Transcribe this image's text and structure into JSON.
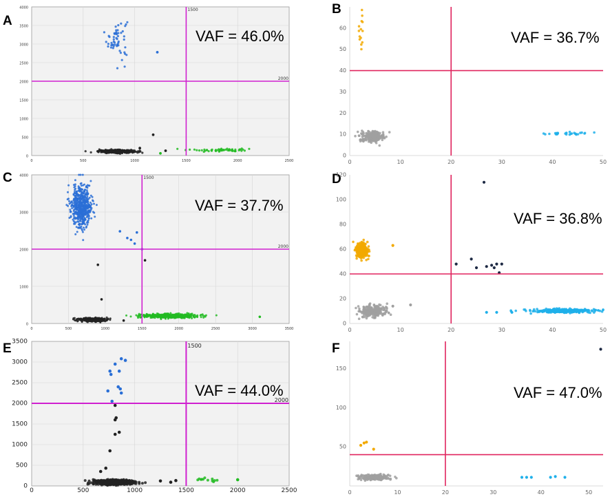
{
  "figure": {
    "panel_labels": [
      "A",
      "B",
      "C",
      "D",
      "E",
      "F"
    ]
  },
  "chart_data": [
    {
      "panel": "A",
      "type": "scatter",
      "annotation": "VAF = 46.0%",
      "xlim": [
        0,
        2500
      ],
      "ylim": [
        0,
        4000
      ],
      "x_ticks": [
        0,
        500,
        1000,
        1500,
        2000,
        2500
      ],
      "y_ticks": [
        0,
        500,
        1000,
        1500,
        2000,
        2500,
        3000,
        3500,
        4000
      ],
      "x_threshold": 1500,
      "y_threshold": 2000,
      "x_threshold_label": "1500",
      "y_threshold_label": "2000",
      "grid": true,
      "clusters": [
        {
          "color": "#2a6fd6",
          "x_mean": 830,
          "y_mean": 3150,
          "x_sd": 50,
          "y_sd": 280,
          "count": 55
        },
        {
          "color": "#222222",
          "x_mean": 820,
          "y_mean": 110,
          "x_sd": 85,
          "y_sd": 20,
          "count": 420
        },
        {
          "color": "#22bb22",
          "x_mean": 1850,
          "y_mean": 150,
          "x_sd": 150,
          "y_sd": 22,
          "count": 55
        }
      ],
      "outliers": [
        {
          "x": 1220,
          "y": 2780,
          "color": "#2a6fd6"
        },
        {
          "x": 1180,
          "y": 560,
          "color": "#222222"
        },
        {
          "x": 1050,
          "y": 200,
          "color": "#222222"
        },
        {
          "x": 1300,
          "y": 130,
          "color": "#222222"
        },
        {
          "x": 1250,
          "y": 60,
          "color": "#22bb22"
        }
      ]
    },
    {
      "panel": "B",
      "type": "scatter",
      "annotation": "VAF = 36.7%",
      "xlim": [
        0,
        50
      ],
      "ylim": [
        0,
        70
      ],
      "x_ticks": [
        0,
        10,
        20,
        30,
        40,
        50
      ],
      "y_ticks": [
        0,
        10,
        20,
        30,
        40,
        50,
        60
      ],
      "x_threshold": 20,
      "y_threshold": 40,
      "grid": false,
      "clusters": [
        {
          "color": "#f2a900",
          "x_mean": 2.2,
          "y_mean": 58,
          "x_sd": 0.35,
          "y_sd": 4.5,
          "count": 14
        },
        {
          "color": "#a0a0a0",
          "x_mean": 4.5,
          "y_mean": 9,
          "x_sd": 1.1,
          "y_sd": 1.2,
          "count": 260
        },
        {
          "color": "#1fb0ea",
          "x_mean": 43,
          "y_mean": 10.3,
          "x_sd": 2.4,
          "y_sd": 0.35,
          "count": 30
        }
      ],
      "outliers": []
    },
    {
      "panel": "C",
      "type": "scatter",
      "annotation": "VAF = 37.7%",
      "xlim": [
        0,
        3500
      ],
      "ylim": [
        0,
        4000
      ],
      "x_ticks": [
        0,
        500,
        1000,
        1500,
        2000,
        2500,
        3000,
        3500
      ],
      "y_ticks": [
        0,
        1000,
        2000,
        3000,
        4000
      ],
      "x_threshold": 1500,
      "y_threshold": 2000,
      "x_threshold_label": "1500",
      "y_threshold_label": "2000",
      "grid": true,
      "clusters": [
        {
          "color": "#2a6fd6",
          "x_mean": 680,
          "y_mean": 3150,
          "x_sd": 70,
          "y_sd": 280,
          "count": 520
        },
        {
          "color": "#222222",
          "x_mean": 820,
          "y_mean": 100,
          "x_sd": 90,
          "y_sd": 22,
          "count": 480
        },
        {
          "color": "#22bb22",
          "x_mean": 1880,
          "y_mean": 200,
          "x_sd": 190,
          "y_sd": 28,
          "count": 520
        }
      ],
      "outliers": [
        {
          "x": 1300,
          "y": 2300,
          "color": "#2a6fd6"
        },
        {
          "x": 1400,
          "y": 2150,
          "color": "#2a6fd6"
        },
        {
          "x": 1430,
          "y": 2450,
          "color": "#2a6fd6"
        },
        {
          "x": 1500,
          "y": 2000,
          "color": "#2a6fd6"
        },
        {
          "x": 1350,
          "y": 2250,
          "color": "#2a6fd6"
        },
        {
          "x": 1200,
          "y": 2480,
          "color": "#2a6fd6"
        },
        {
          "x": 1540,
          "y": 1700,
          "color": "#222222"
        },
        {
          "x": 900,
          "y": 1580,
          "color": "#222222"
        },
        {
          "x": 950,
          "y": 650,
          "color": "#222222"
        },
        {
          "x": 1250,
          "y": 80,
          "color": "#222222"
        },
        {
          "x": 3100,
          "y": 180,
          "color": "#22bb22"
        }
      ]
    },
    {
      "panel": "D",
      "type": "scatter",
      "annotation": "VAF = 36.8%",
      "xlim": [
        0,
        50
      ],
      "ylim": [
        0,
        120
      ],
      "x_ticks": [
        0,
        10,
        20,
        30,
        40,
        50
      ],
      "y_ticks": [
        0,
        20,
        40,
        60,
        80,
        100,
        120
      ],
      "x_threshold": 20,
      "y_threshold": 40,
      "grid": false,
      "clusters": [
        {
          "color": "#f2a900",
          "x_mean": 2.4,
          "y_mean": 59,
          "x_sd": 0.6,
          "y_sd": 3.2,
          "count": 280
        },
        {
          "color": "#a0a0a0",
          "x_mean": 4.5,
          "y_mean": 10,
          "x_sd": 1.4,
          "y_sd": 2.6,
          "count": 230
        },
        {
          "color": "#1fb0ea",
          "x_mean": 42,
          "y_mean": 10.2,
          "x_sd": 3.2,
          "y_sd": 0.7,
          "count": 320
        }
      ],
      "outliers": [
        {
          "x": 26.5,
          "y": 114,
          "color": "#1e2a44"
        },
        {
          "x": 21,
          "y": 48,
          "color": "#1e2a44"
        },
        {
          "x": 24,
          "y": 52,
          "color": "#1e2a44"
        },
        {
          "x": 25,
          "y": 45,
          "color": "#1e2a44"
        },
        {
          "x": 27,
          "y": 46,
          "color": "#1e2a44"
        },
        {
          "x": 28,
          "y": 47,
          "color": "#1e2a44"
        },
        {
          "x": 28.5,
          "y": 45,
          "color": "#1e2a44"
        },
        {
          "x": 29,
          "y": 48,
          "color": "#1e2a44"
        },
        {
          "x": 30,
          "y": 48,
          "color": "#1e2a44"
        },
        {
          "x": 29.5,
          "y": 41,
          "color": "#1e2a44"
        },
        {
          "x": 8.5,
          "y": 63,
          "color": "#f2a900"
        },
        {
          "x": 12,
          "y": 15,
          "color": "#a0a0a0"
        },
        {
          "x": 8.5,
          "y": 14,
          "color": "#a0a0a0"
        },
        {
          "x": 27,
          "y": 9,
          "color": "#1fb0ea"
        },
        {
          "x": 29,
          "y": 9,
          "color": "#1fb0ea"
        },
        {
          "x": 32,
          "y": 9,
          "color": "#1fb0ea"
        }
      ]
    },
    {
      "panel": "E",
      "type": "scatter",
      "annotation": "VAF = 44.0%",
      "xlim": [
        0,
        2500
      ],
      "ylim": [
        0,
        3500
      ],
      "x_ticks": [
        0,
        500,
        1000,
        1500,
        2000,
        2500
      ],
      "y_ticks": [
        0,
        500,
        1000,
        1500,
        2000,
        2500,
        3000,
        3500
      ],
      "x_threshold": 1500,
      "y_threshold": 2000,
      "x_threshold_label": "1500",
      "y_threshold_label": "2000",
      "grid": true,
      "clusters": [
        {
          "color": "#222222",
          "x_mean": 800,
          "y_mean": 90,
          "x_sd": 90,
          "y_sd": 28,
          "count": 520
        },
        {
          "color": "#22bb22",
          "x_mean": 1720,
          "y_mean": 150,
          "x_sd": 90,
          "y_sd": 25,
          "count": 12
        }
      ],
      "outliers": [
        {
          "x": 760,
          "y": 2780,
          "color": "#2a6fd6"
        },
        {
          "x": 770,
          "y": 2700,
          "color": "#2a6fd6"
        },
        {
          "x": 810,
          "y": 2950,
          "color": "#2a6fd6"
        },
        {
          "x": 870,
          "y": 3080,
          "color": "#2a6fd6"
        },
        {
          "x": 910,
          "y": 3040,
          "color": "#2a6fd6"
        },
        {
          "x": 850,
          "y": 2780,
          "color": "#2a6fd6"
        },
        {
          "x": 860,
          "y": 2350,
          "color": "#2a6fd6"
        },
        {
          "x": 870,
          "y": 2250,
          "color": "#2a6fd6"
        },
        {
          "x": 840,
          "y": 2400,
          "color": "#2a6fd6"
        },
        {
          "x": 740,
          "y": 2300,
          "color": "#2a6fd6"
        },
        {
          "x": 780,
          "y": 2050,
          "color": "#2a6fd6"
        },
        {
          "x": 810,
          "y": 1950,
          "color": "#222222"
        },
        {
          "x": 820,
          "y": 1650,
          "color": "#222222"
        },
        {
          "x": 810,
          "y": 1600,
          "color": "#222222"
        },
        {
          "x": 810,
          "y": 1250,
          "color": "#222222"
        },
        {
          "x": 850,
          "y": 1300,
          "color": "#222222"
        },
        {
          "x": 760,
          "y": 850,
          "color": "#222222"
        },
        {
          "x": 670,
          "y": 350,
          "color": "#222222"
        },
        {
          "x": 720,
          "y": 430,
          "color": "#222222"
        },
        {
          "x": 1400,
          "y": 130,
          "color": "#222222"
        },
        {
          "x": 1350,
          "y": 90,
          "color": "#222222"
        },
        {
          "x": 1250,
          "y": 120,
          "color": "#222222"
        },
        {
          "x": 2000,
          "y": 150,
          "color": "#22bb22"
        }
      ]
    },
    {
      "panel": "F",
      "type": "scatter",
      "annotation": "VAF = 47.0%",
      "xlim": [
        0,
        53
      ],
      "ylim": [
        0,
        185
      ],
      "x_ticks": [
        0,
        10,
        20,
        30,
        40,
        50
      ],
      "y_ticks": [
        50,
        100,
        150
      ],
      "x_threshold": 20,
      "y_threshold": 40,
      "grid": false,
      "clusters": [
        {
          "color": "#a0a0a0",
          "x_mean": 5,
          "y_mean": 11,
          "x_sd": 1.5,
          "y_sd": 1.8,
          "count": 240
        }
      ],
      "outliers": [
        {
          "x": 2.3,
          "y": 52,
          "color": "#f2a900"
        },
        {
          "x": 3,
          "y": 55,
          "color": "#f2a900"
        },
        {
          "x": 3.5,
          "y": 56,
          "color": "#f2a900"
        },
        {
          "x": 5,
          "y": 47,
          "color": "#f2a900"
        },
        {
          "x": 36,
          "y": 11,
          "color": "#1fb0ea"
        },
        {
          "x": 37,
          "y": 11,
          "color": "#1fb0ea"
        },
        {
          "x": 38,
          "y": 11,
          "color": "#1fb0ea"
        },
        {
          "x": 42,
          "y": 11,
          "color": "#1fb0ea"
        },
        {
          "x": 43,
          "y": 12,
          "color": "#1fb0ea"
        },
        {
          "x": 45,
          "y": 11,
          "color": "#1fb0ea"
        },
        {
          "x": 52.5,
          "y": 175,
          "color": "#1e2a44"
        }
      ]
    }
  ]
}
